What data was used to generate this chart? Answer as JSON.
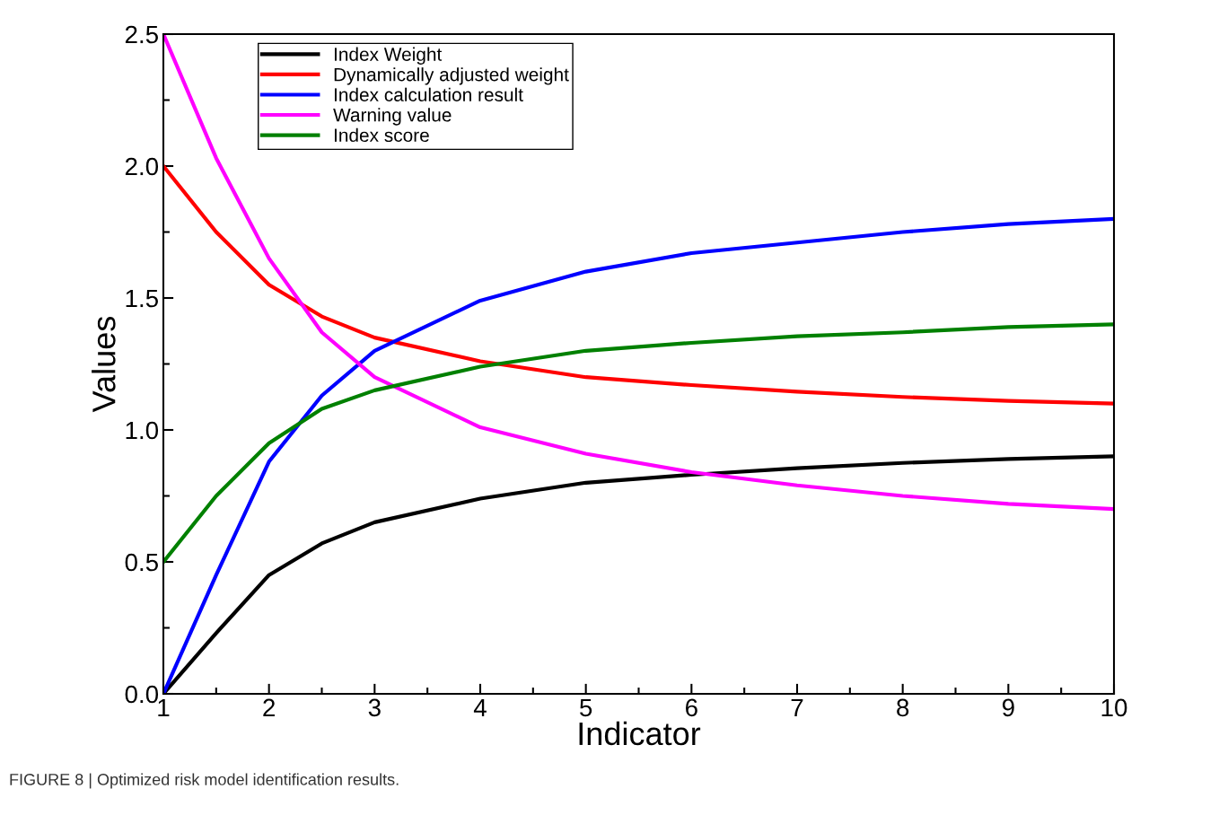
{
  "chart_data": {
    "type": "line",
    "xlabel": "Indicator",
    "ylabel": "Values",
    "x": [
      1,
      1.5,
      2,
      2.5,
      3,
      4,
      5,
      6,
      7,
      8,
      9,
      10
    ],
    "xlim": [
      1,
      10
    ],
    "xticks": [
      1,
      2,
      3,
      4,
      5,
      6,
      7,
      8,
      9,
      10
    ],
    "ylim": [
      0,
      2.5
    ],
    "yticks": [
      {
        "value": 0,
        "label": "0.0"
      },
      {
        "value": 0.5,
        "label": "0.5"
      },
      {
        "value": 1,
        "label": "1.0"
      },
      {
        "value": 1.5,
        "label": "1.5"
      },
      {
        "value": 2,
        "label": "2.0"
      },
      {
        "value": 2.5,
        "label": "2.5"
      }
    ],
    "series": [
      {
        "name": "Index Weight",
        "color": "#000000",
        "values": [
          0,
          0.23,
          0.45,
          0.57,
          0.65,
          0.74,
          0.8,
          0.83,
          0.855,
          0.875,
          0.89,
          0.9
        ]
      },
      {
        "name": "Dynamically adjusted weight",
        "color": "#ff0000",
        "values": [
          2.0,
          1.75,
          1.55,
          1.43,
          1.35,
          1.26,
          1.2,
          1.17,
          1.145,
          1.125,
          1.11,
          1.1
        ]
      },
      {
        "name": "Index calculation result",
        "color": "#0000ff",
        "values": [
          0,
          0.45,
          0.88,
          1.13,
          1.3,
          1.49,
          1.6,
          1.67,
          1.71,
          1.75,
          1.78,
          1.8
        ]
      },
      {
        "name": "Warning value",
        "color": "#ff00ff",
        "values": [
          2.5,
          2.03,
          1.65,
          1.37,
          1.2,
          1.01,
          0.91,
          0.84,
          0.79,
          0.75,
          0.72,
          0.7
        ]
      },
      {
        "name": "Index score",
        "color": "#008000",
        "values": [
          0.5,
          0.75,
          0.95,
          1.08,
          1.15,
          1.24,
          1.3,
          1.33,
          1.355,
          1.37,
          1.39,
          1.4
        ]
      }
    ],
    "legend": "top left",
    "grid": false,
    "marker": "none",
    "line_style": "solid",
    "annotations": [
      "FIGURE 8 | Optimized risk model identification results."
    ]
  }
}
